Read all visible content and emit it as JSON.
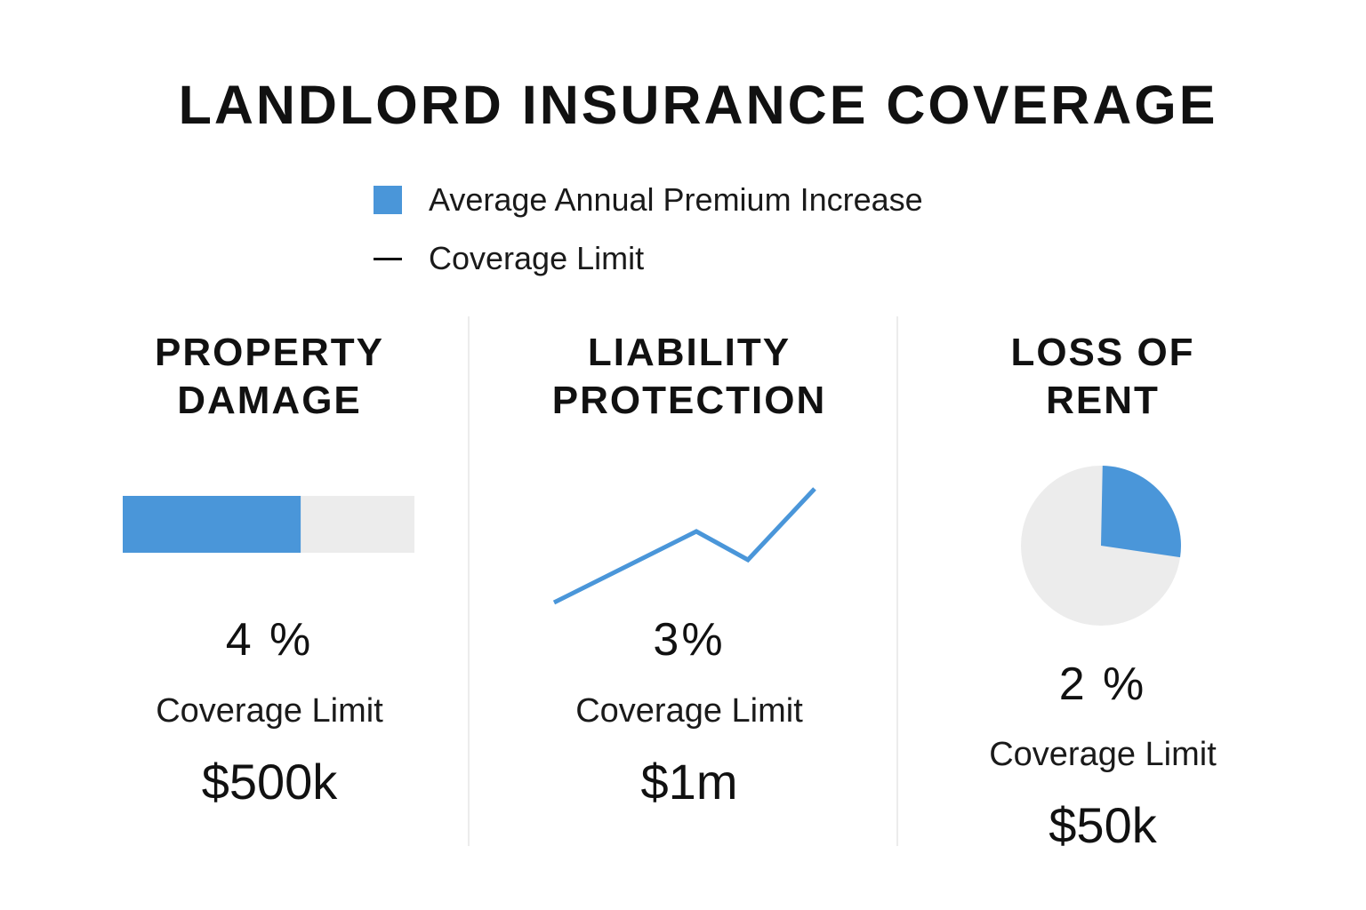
{
  "title": "LANDLORD INSURANCE COVERAGE",
  "legend": {
    "premium_label": "Average Annual Premium Increase",
    "limit_label": "Coverage Limit"
  },
  "colors": {
    "accent": "#4a96d9",
    "track": "#ececec",
    "text": "#111111"
  },
  "chart_data": [
    {
      "type": "bar",
      "title": "PROPERTY DAMAGE",
      "title_lines": [
        "PROPERTY",
        "DAMAGE"
      ],
      "value_label": "4 %",
      "fill_fraction": 0.61,
      "coverage_label": "Coverage Limit",
      "coverage_value": "$500k"
    },
    {
      "type": "line",
      "title": "LIABILITY PROTECTION",
      "title_lines": [
        "LIABILITY",
        "PROTECTION"
      ],
      "value_label": "3%",
      "values": [
        0,
        1,
        0.6,
        1.6
      ],
      "ylim": [
        0,
        1.6
      ],
      "coverage_label": "Coverage Limit",
      "coverage_value": "$1m"
    },
    {
      "type": "pie",
      "title": "LOSS OF RENT",
      "title_lines": [
        "LOSS OF",
        "RENT"
      ],
      "value_label": "2 %",
      "slice_fraction": 0.27,
      "coverage_label": "Coverage Limit",
      "coverage_value": "$50k"
    }
  ]
}
